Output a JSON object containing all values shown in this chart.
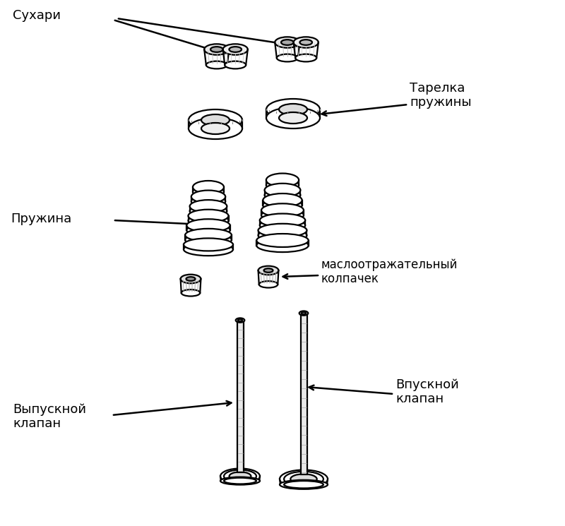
{
  "bg_color": "#ffffff",
  "line_color": "#000000",
  "labels": {
    "sukhari": "Сухари",
    "tarelka": "Тарелка\nпружины",
    "pruzhina": "Пружина",
    "maslo": "маслоотражательный\nколпачек",
    "vpusknoy": "Впускной\nклапан",
    "vypusknoy": "Выпускной\nклапан"
  },
  "figsize": [
    8.0,
    7.45
  ],
  "dpi": 100
}
